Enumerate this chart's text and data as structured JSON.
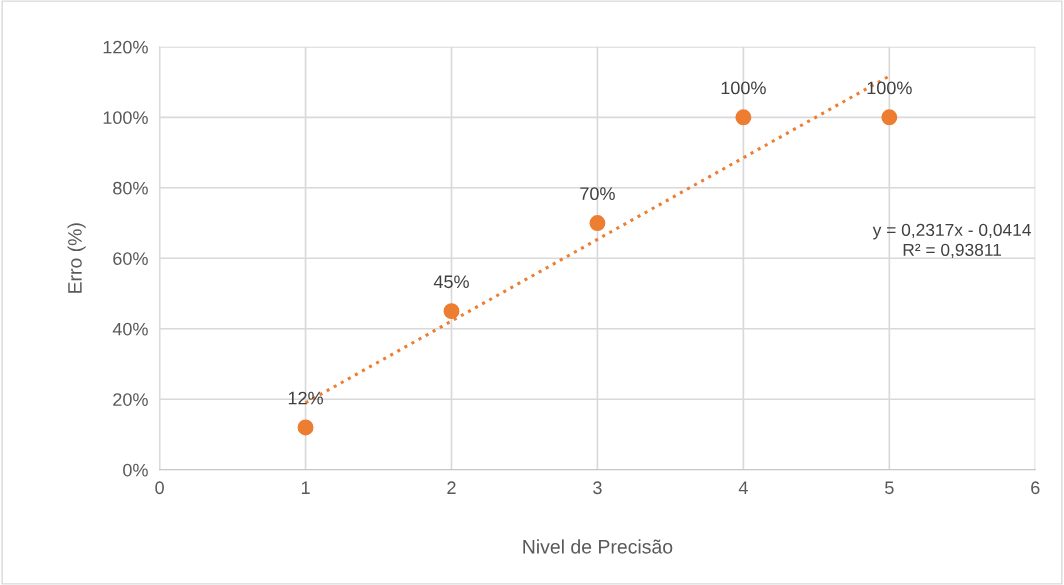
{
  "chart_data": {
    "type": "scatter",
    "xlabel": "Nivel de Precisão",
    "ylabel": "Erro (%)",
    "series": [
      {
        "color": "#ed7d31",
        "x": [
          1,
          2,
          3,
          4,
          5
        ],
        "values": [
          12,
          45,
          70,
          100,
          100
        ],
        "value_labels": [
          "12%",
          "45%",
          "70%",
          "100%",
          "100%"
        ],
        "marker": "circle"
      },
      {
        "type": "line",
        "color": "#ed7d31",
        "x": [
          1,
          5
        ],
        "values": [
          19.0,
          111.7
        ],
        "line_style": "dotted",
        "marker": "none"
      }
    ],
    "xlim": [
      0,
      6
    ],
    "xticks": [
      0,
      1,
      2,
      3,
      4,
      5,
      6
    ],
    "ylim": [
      0,
      120
    ],
    "yticks": [
      {
        "value": 0,
        "label": "0%"
      },
      {
        "value": 20,
        "label": "20%"
      },
      {
        "value": 40,
        "label": "40%"
      },
      {
        "value": 60,
        "label": "60%"
      },
      {
        "value": 80,
        "label": "80%"
      },
      {
        "value": 100,
        "label": "100%"
      },
      {
        "value": 120,
        "label": "120%"
      }
    ],
    "grid": true,
    "annotations": [
      "y = 0,2317x - 0,0414\nR² = 0,93811"
    ]
  }
}
